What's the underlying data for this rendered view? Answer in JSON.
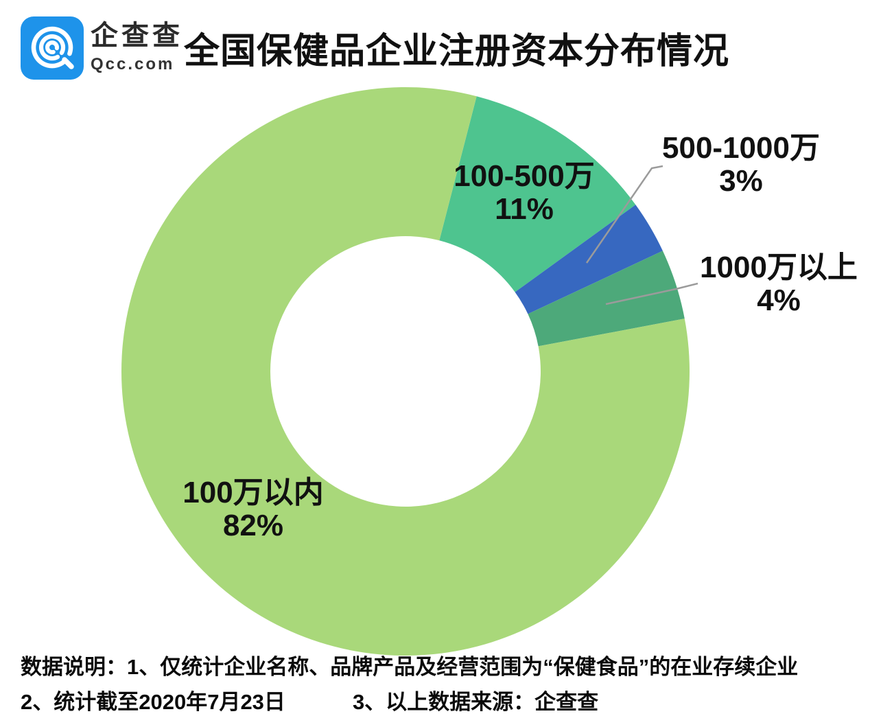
{
  "header": {
    "logo": {
      "name_cn": "企查查",
      "domain": "Qcc.com",
      "brand_color": "#1E93EA"
    },
    "title": "全国保健品企业注册资本分布情况"
  },
  "chart_data": {
    "type": "pie",
    "donut": true,
    "title": "全国保健品企业注册资本分布情况",
    "start_angle_deg": 14.5,
    "legend_position": "labels-on-chart",
    "slices": [
      {
        "label": "100-500万",
        "value": 11,
        "pct_label": "11%",
        "color": "#4EC48F"
      },
      {
        "label": "500-1000万",
        "value": 3,
        "pct_label": "3%",
        "color": "#3768C0"
      },
      {
        "label": "1000万以上",
        "value": 4,
        "pct_label": "4%",
        "color": "#4DA97A"
      },
      {
        "label": "100万以内",
        "value": 82,
        "pct_label": "82%",
        "color": "#A9D87A"
      }
    ],
    "leader_line_color": "#9B9B9B"
  },
  "footnotes": {
    "note1": "数据说明：1、仅统计企业名称、品牌产品及经营范围为“保健食品”的在业存续企业",
    "note2": "2、统计截至2020年7月23日",
    "note3": "3、以上数据来源：企查查"
  }
}
